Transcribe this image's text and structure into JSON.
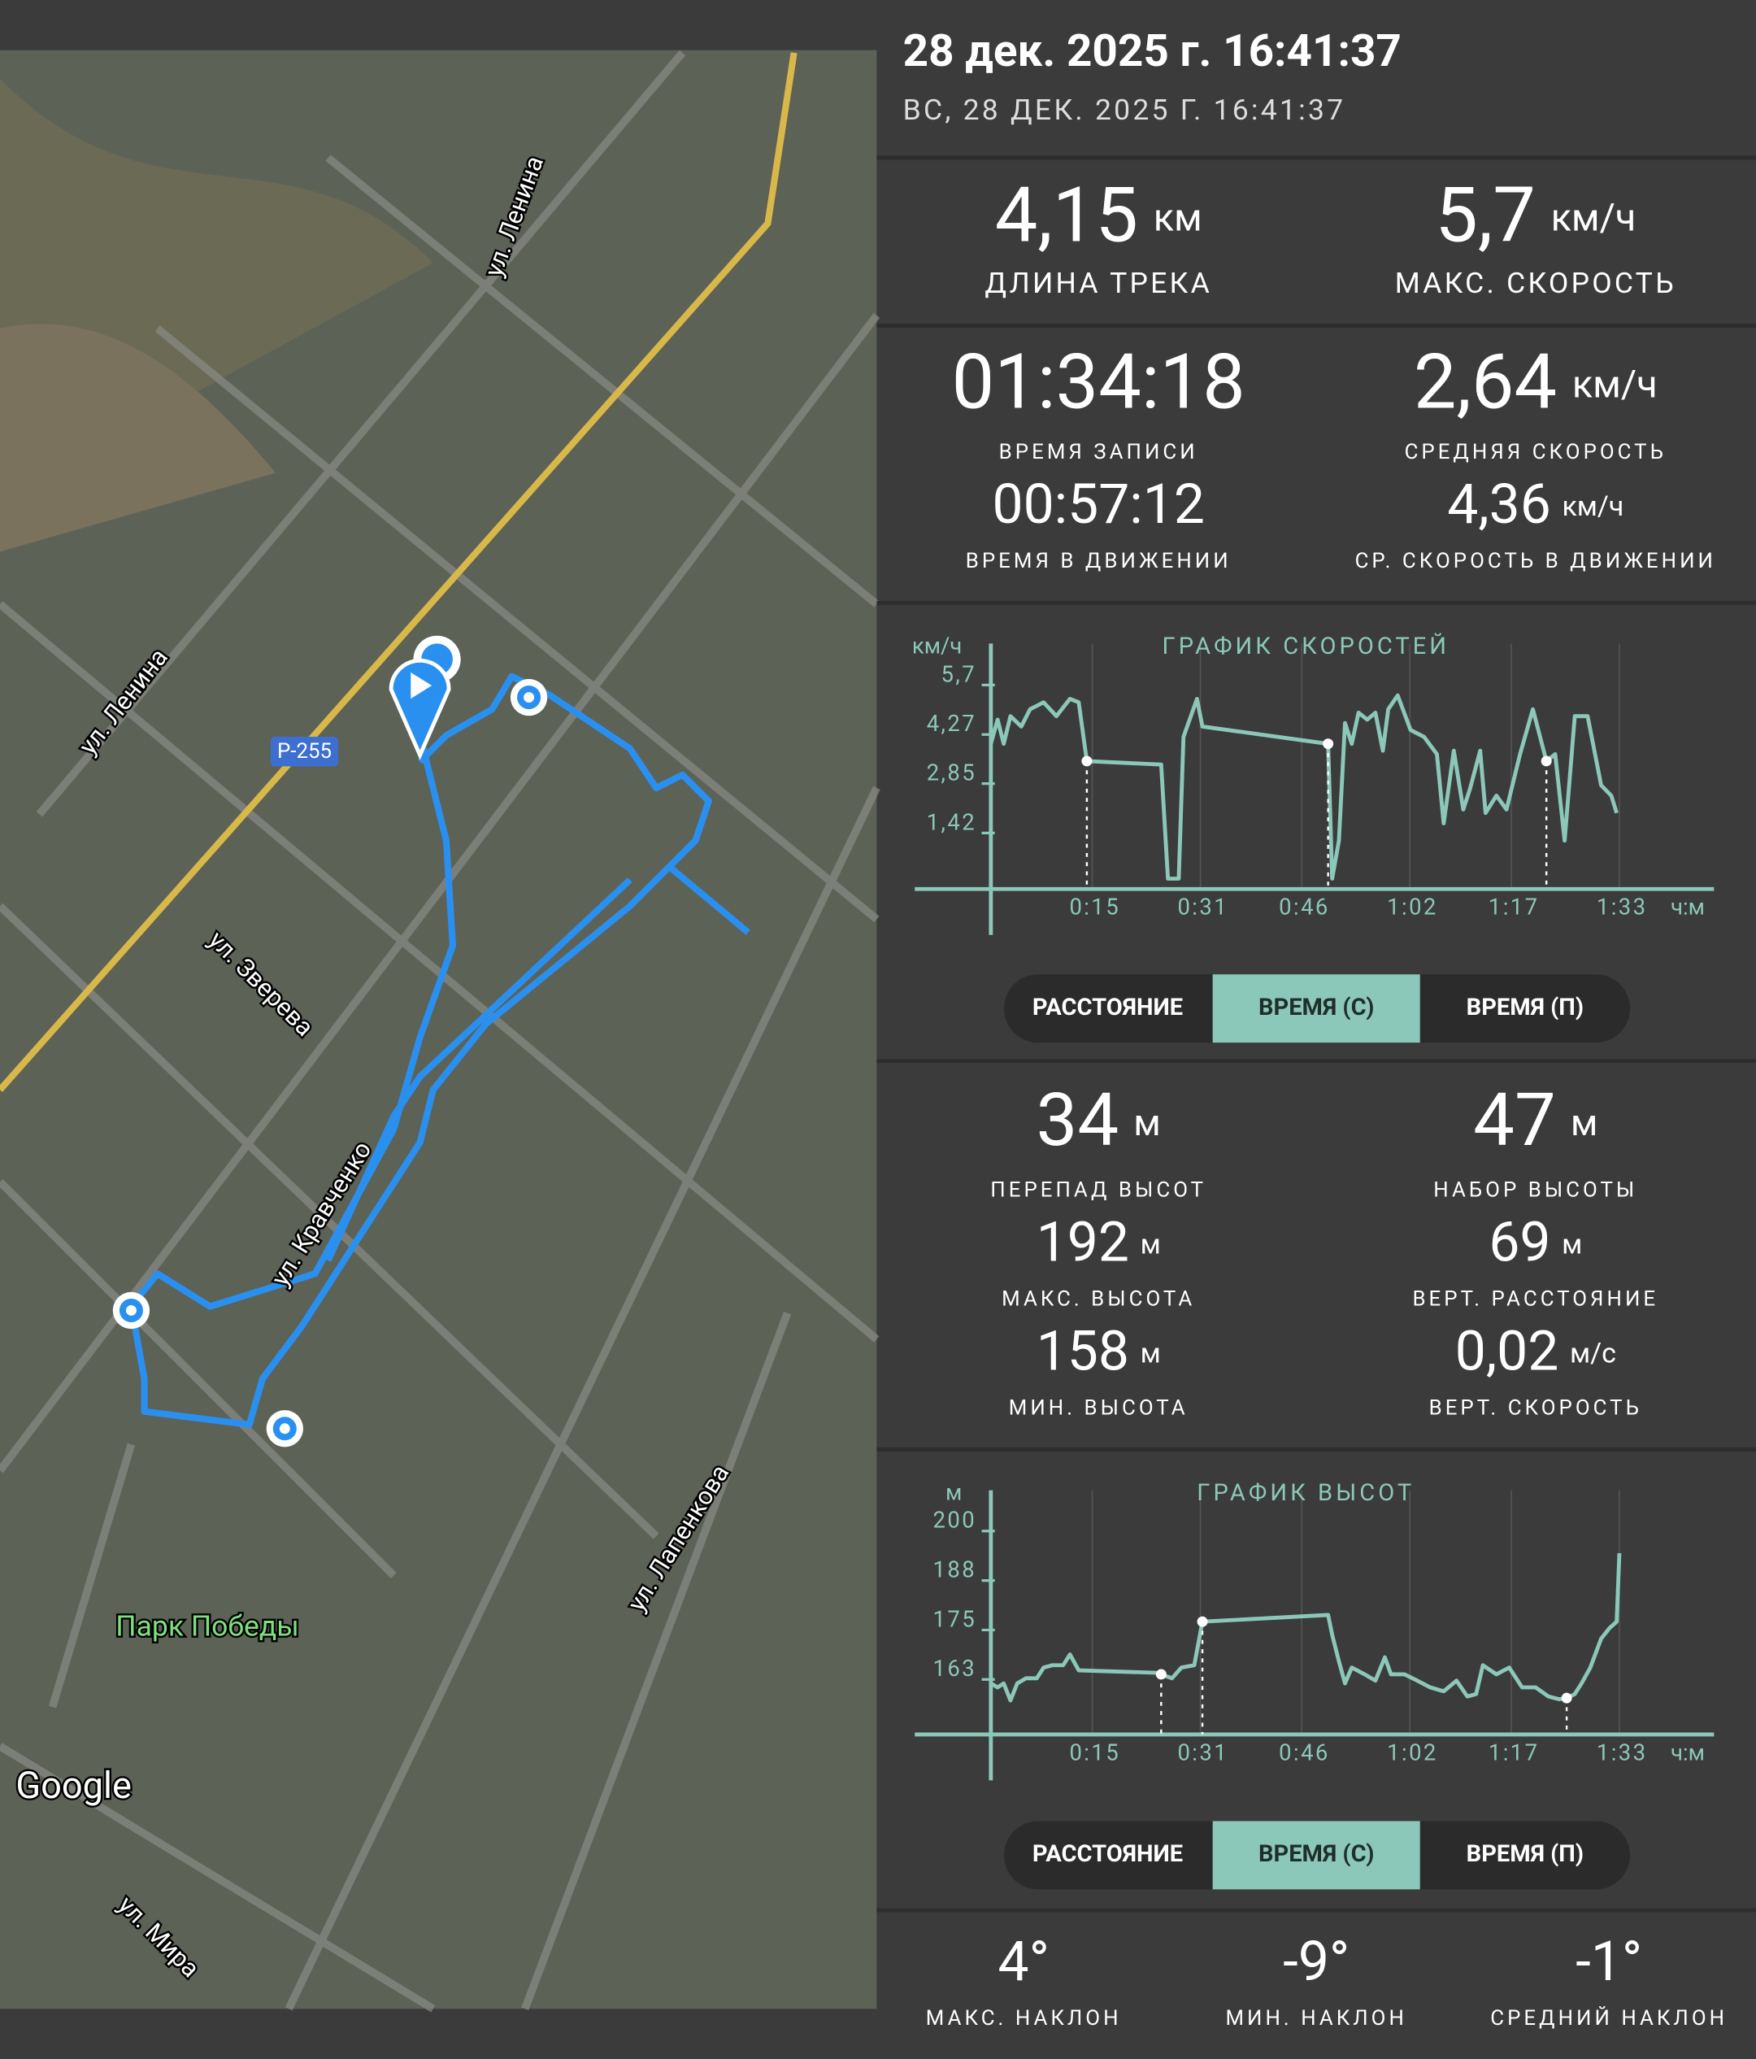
{
  "map": {
    "labels": [
      "ул. Ленина",
      "ул. Ленина",
      "Р-255",
      "ул. Зверева",
      "ул. Кравченко",
      "ул. Лапенкова",
      "Парк Победы",
      "ул. Мира"
    ],
    "attribution": "Google"
  },
  "header": {
    "title": "28 дек. 2025 г. 16:41:37",
    "subtitle": "ВС, 28 ДЕК. 2025 Г. 16:41:37"
  },
  "stats": [
    {
      "value": "4,15",
      "unit": "км",
      "label": "ДЛИНА ТРЕКА"
    },
    {
      "value": "5,7",
      "unit": "км/ч",
      "label": "МАКС. СКОРОСТЬ"
    },
    {
      "value": "01:34:18",
      "label": "ВРЕМЯ ЗАПИСИ"
    },
    {
      "value": "2,64",
      "unit": "км/ч",
      "label": "СРЕДНЯЯ СКОРОСТЬ"
    },
    {
      "value": "00:57:12",
      "label": "ВРЕМЯ В ДВИЖЕНИИ"
    },
    {
      "value": "4,36",
      "unit": "км/ч",
      "label": "СР. СКОРОСТЬ В ДВИЖЕНИИ"
    },
    {
      "value": "34",
      "unit": "м",
      "label": "ПЕРЕПАД ВЫСОТ"
    },
    {
      "value": "47",
      "unit": "м",
      "label": "НАБОР ВЫСОТЫ"
    },
    {
      "value": "192",
      "unit": "м",
      "label": "МАКС. ВЫСОТА"
    },
    {
      "value": "69",
      "unit": "м",
      "label": "ВЕРТ. РАССТОЯНИЕ"
    },
    {
      "value": "158",
      "unit": "м",
      "label": "МИН. ВЫСОТА"
    },
    {
      "value": "0,02",
      "unit": "м/с",
      "label": "ВЕРТ. СКОРОСТЬ"
    },
    {
      "value": "4°",
      "label": "МАКС. НАКЛОН"
    },
    {
      "value": "-9°",
      "label": "МИН. НАКЛОН"
    },
    {
      "value": "-1°",
      "label": "СРЕДНИЙ НАКЛОН"
    }
  ],
  "tabs": {
    "items": [
      "РАССТОЯНИЕ",
      "ВРЕМЯ (С)",
      "ВРЕМЯ (П)"
    ],
    "selected": 1
  },
  "chart_data": [
    {
      "type": "line",
      "title": "ГРАФИК СКОРОСТЕЙ",
      "y_unit": "км/ч",
      "x_unit": "ч:м",
      "color": "#8cc8b9",
      "xlim": [
        0,
        107
      ],
      "ylim": [
        -0.2,
        6.9
      ],
      "xticks": [
        {
          "value": 15,
          "label": "0:15"
        },
        {
          "value": 31,
          "label": "0:31"
        },
        {
          "value": 46,
          "label": "0:46"
        },
        {
          "value": 62,
          "label": "1:02"
        },
        {
          "value": 77,
          "label": "1:17"
        },
        {
          "value": 93,
          "label": "1:33"
        }
      ],
      "yticks": [
        {
          "value": 1.42,
          "label": "1,42"
        },
        {
          "value": 2.85,
          "label": "2,85"
        },
        {
          "value": 4.27,
          "label": "4,27"
        },
        {
          "value": 5.7,
          "label": "5,7"
        }
      ],
      "x": [
        0,
        1,
        1.9,
        2.9,
        4.5,
        5.8,
        7.8,
        9.7,
        11.7,
        13,
        14.2,
        25.2,
        26.2,
        27.8,
        28.5,
        30.5,
        31.3,
        49.9,
        50.5,
        51.5,
        52.4,
        53.4,
        54.4,
        55.7,
        56.9,
        58,
        58.8,
        60.2,
        62.1,
        64.1,
        66,
        67,
        68.5,
        69.9,
        70.9,
        72.4,
        73.2,
        74.8,
        76.3,
        78.3,
        80.2,
        82.2,
        83.5,
        84.9,
        86.4,
        88.3,
        90.3,
        91.8,
        92.6
      ],
      "values": [
        4.0,
        4.7,
        4.0,
        4.8,
        4.5,
        5.0,
        5.2,
        4.8,
        5.3,
        5.2,
        3.5,
        3.4,
        0.1,
        0.1,
        4.2,
        5.3,
        4.5,
        4.0,
        0.1,
        1.2,
        4.6,
        4.0,
        4.9,
        4.7,
        4.9,
        3.8,
        5.0,
        5.4,
        4.4,
        4.2,
        3.7,
        1.7,
        3.8,
        2.1,
        2.7,
        3.8,
        2.0,
        2.5,
        2.1,
        3.7,
        5.0,
        3.5,
        3.7,
        1.2,
        4.8,
        4.8,
        2.8,
        2.5,
        2.0
      ],
      "markers": [
        10,
        17,
        41
      ]
    },
    {
      "type": "line",
      "title": "ГРАФИК ВЫСОТ",
      "y_unit": "м",
      "x_unit": "ч:м",
      "color": "#8cc8b9",
      "xlim": [
        0,
        107
      ],
      "ylim": [
        148.6,
        210.3
      ],
      "xticks": [
        {
          "value": 15,
          "label": "0:15"
        },
        {
          "value": 31,
          "label": "0:31"
        },
        {
          "value": 46,
          "label": "0:46"
        },
        {
          "value": 62,
          "label": "1:02"
        },
        {
          "value": 77,
          "label": "1:17"
        },
        {
          "value": 93,
          "label": "1:33"
        }
      ],
      "yticks": [
        {
          "value": 162.5,
          "label": "163"
        },
        {
          "value": 175,
          "label": "175"
        },
        {
          "value": 187.5,
          "label": "188"
        },
        {
          "value": 200,
          "label": "200"
        }
      ],
      "x": [
        0,
        1,
        1.9,
        2.9,
        3.9,
        5.2,
        6.8,
        7.8,
        9.1,
        10.7,
        11.7,
        13,
        24.3,
        25.2,
        26.8,
        28.2,
        30.1,
        31.3,
        49.9,
        50.5,
        51.5,
        52.4,
        53.4,
        55.3,
        56.9,
        58.3,
        59.2,
        61.2,
        63.1,
        65,
        67,
        68.9,
        70.5,
        71.8,
        72.8,
        74.8,
        76.7,
        78.6,
        80.6,
        82.5,
        84.1,
        85.2,
        86.4,
        87.4,
        88.7,
        90.3,
        91.5,
        92.6,
        93
      ],
      "values": [
        161.5,
        160.5,
        161.5,
        157.2,
        161.5,
        162.8,
        162.8,
        165.5,
        166.1,
        166.1,
        168.8,
        164.8,
        164.2,
        163.8,
        162.8,
        165.5,
        166.1,
        177.1,
        178.8,
        173.8,
        167.1,
        161.5,
        165.5,
        163.8,
        162.2,
        168.1,
        163.8,
        163.8,
        162.2,
        160.5,
        159.5,
        162.2,
        158.2,
        158.8,
        166.1,
        163.8,
        165.5,
        160.5,
        160.5,
        158.2,
        157.5,
        157.8,
        158.8,
        161.5,
        165.5,
        172.8,
        175.4,
        177.1,
        194.4
      ],
      "markers": [
        13,
        17,
        41
      ]
    }
  ]
}
